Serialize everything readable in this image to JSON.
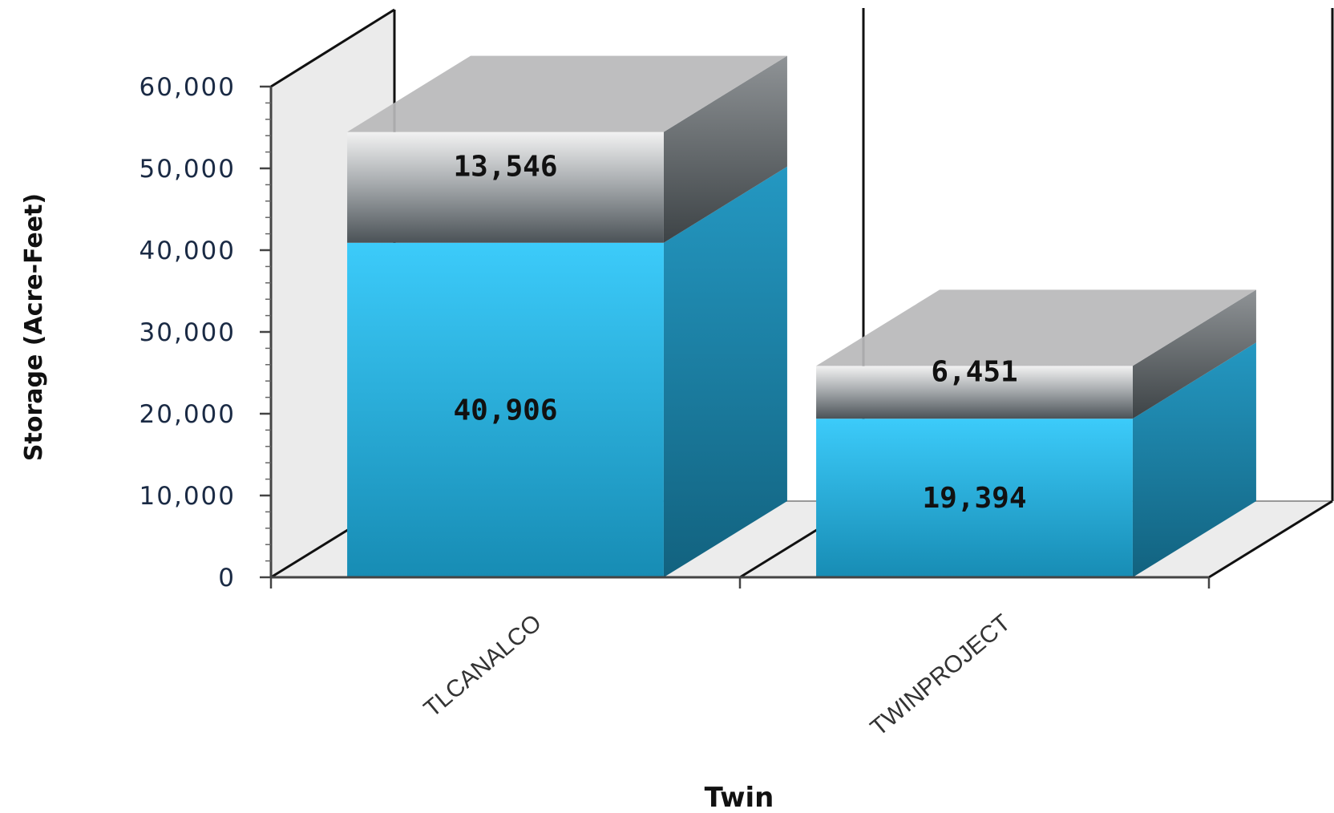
{
  "chart_data": {
    "type": "bar",
    "stacked": true,
    "three_d": true,
    "categories": [
      "TLCANALCO",
      "TWINPROJECT"
    ],
    "series": [
      {
        "values": [
          40906,
          19394
        ],
        "color": "#29b9e6"
      },
      {
        "values": [
          13546,
          6451
        ],
        "color": "#a9adb0"
      }
    ],
    "data_labels": [
      [
        "40,906",
        "19,394"
      ],
      [
        "13,546",
        "6,451"
      ]
    ],
    "xlabel": "Twin",
    "ylabel": "Storage (Acre-Feet)",
    "ylim": [
      0,
      60000
    ],
    "yticks": [
      "0",
      "10,000",
      "20,000",
      "30,000",
      "40,000",
      "50,000",
      "60,000"
    ],
    "grid": false,
    "legend": "none"
  }
}
